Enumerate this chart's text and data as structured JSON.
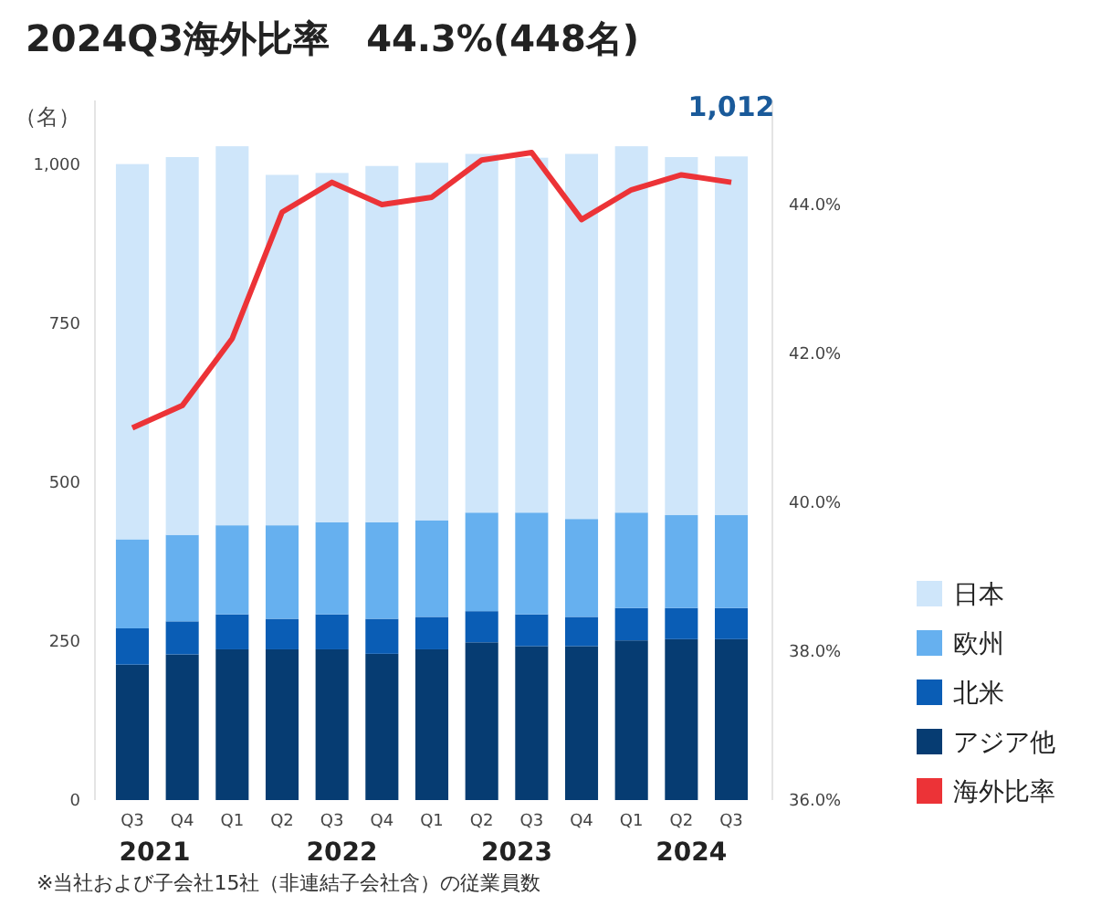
{
  "chart_data": {
    "type": "bar",
    "title": "2024Q3海外比率　44.3%(448名)",
    "ylabel": "（名）",
    "stacked": true,
    "legend": "bottom right",
    "grid": false,
    "categories": [
      "Q3",
      "Q4",
      "Q1",
      "Q2",
      "Q3",
      "Q4",
      "Q1",
      "Q2",
      "Q3",
      "Q4",
      "Q1",
      "Q2",
      "Q3"
    ],
    "series": [
      {
        "name": "アジア他",
        "color": "#063c72",
        "values": [
          213,
          229,
          237,
          237,
          237,
          230,
          237,
          248,
          242,
          242,
          251,
          253,
          253
        ]
      },
      {
        "name": "北米",
        "color": "#0a5db5",
        "values": [
          57,
          52,
          55,
          48,
          55,
          55,
          51,
          49,
          50,
          46,
          51,
          49,
          49
        ]
      },
      {
        "name": "欧州",
        "color": "#66b0ef",
        "values": [
          140,
          136,
          140,
          147,
          145,
          152,
          152,
          155,
          160,
          154,
          150,
          146,
          146
        ]
      },
      {
        "name": "日本",
        "color": "#cfe6fa",
        "values": [
          590,
          594,
          596,
          551,
          549,
          560,
          562,
          564,
          558,
          574,
          576,
          563,
          564
        ]
      },
      {
        "name": "海外比率",
        "type": "line",
        "axis": "y2",
        "color": "#ec3337",
        "values": [
          41.0,
          41.3,
          42.2,
          43.9,
          44.3,
          44.0,
          44.1,
          44.6,
          44.7,
          43.8,
          44.2,
          44.4,
          44.3
        ]
      }
    ],
    "totals": [
      null,
      null,
      null,
      null,
      null,
      null,
      null,
      null,
      null,
      null,
      null,
      null,
      "1,012"
    ],
    "ylim": [
      0,
      1100
    ],
    "yticks": [
      0,
      250,
      500,
      750,
      {
        "value": 1000,
        "label": "1,000"
      }
    ],
    "y2lim": [
      36,
      45.4
    ],
    "y2ticks": [
      {
        "value": 36,
        "label": "36.0%"
      },
      {
        "value": 38,
        "label": "38.0%"
      },
      {
        "value": 40,
        "label": "40.0%"
      },
      {
        "value": 42,
        "label": "42.0%"
      },
      {
        "value": 44,
        "label": "44.0%"
      }
    ],
    "annotations": [
      "2021",
      "2022",
      "2023",
      "2024",
      "※当社および子会社15社（非連結子会社含）の従業員数"
    ]
  }
}
